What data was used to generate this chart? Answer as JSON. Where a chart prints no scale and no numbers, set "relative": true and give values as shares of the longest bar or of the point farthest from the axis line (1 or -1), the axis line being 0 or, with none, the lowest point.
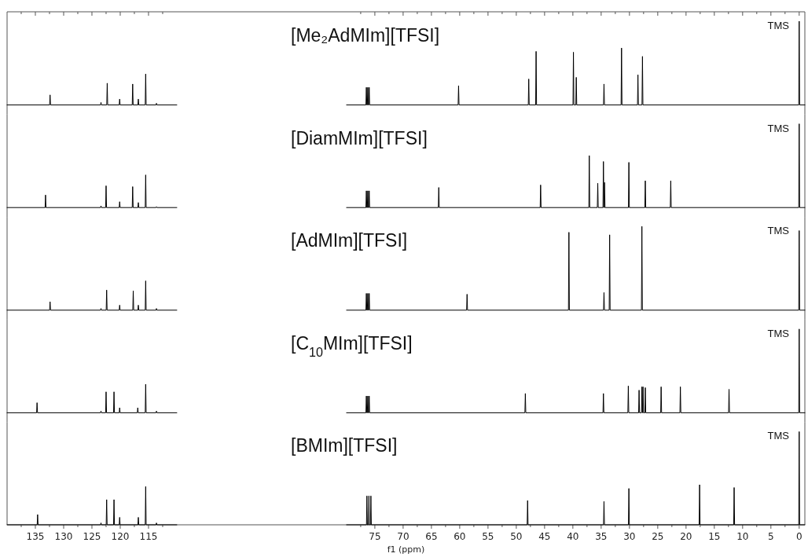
{
  "chart_data": [
    {
      "type": "line",
      "title": "[Me₂AdMIm][TFSI]",
      "relative": true,
      "tick_labels": false,
      "annotations": [
        "TMS"
      ],
      "xlim": [
        140,
        -1
      ],
      "xticks": [
        {
          "value": 137.5,
          "label": null
        },
        135,
        {
          "value": 132.5,
          "label": null
        },
        130,
        {
          "value": 127.5,
          "label": null
        },
        125,
        {
          "value": 122.5,
          "label": null
        },
        120,
        {
          "value": 117.5,
          "label": null
        },
        115,
        {
          "value": 112.5,
          "label": null
        },
        {
          "value": 77.5,
          "label": null
        },
        75,
        {
          "value": 72.5,
          "label": null
        },
        70,
        {
          "value": 67.5,
          "label": null
        },
        65,
        {
          "value": 62.5,
          "label": null
        },
        60,
        {
          "value": 57.5,
          "label": null
        },
        55,
        {
          "value": 52.5,
          "label": null
        },
        50,
        {
          "value": 47.5,
          "label": null
        },
        45,
        {
          "value": 42.5,
          "label": null
        },
        40,
        {
          "value": 37.5,
          "label": null
        },
        35,
        {
          "value": 32.5,
          "label": null
        },
        30,
        {
          "value": 27.5,
          "label": null
        },
        25,
        {
          "value": 22.5,
          "label": null
        },
        20,
        {
          "value": 17.5,
          "label": null
        },
        15,
        {
          "value": 12.5,
          "label": null
        },
        10,
        {
          "value": 7.5,
          "label": null
        },
        5,
        {
          "value": 2.5,
          "label": null
        },
        0
      ],
      "series": [
        {
          "color": "#000000",
          "x": [
            140,
            132.48,
            132.4,
            132.32,
            123.48,
            123.4,
            123.32,
            122.38,
            122.3,
            122.22,
            120.18,
            120.1,
            120.02,
            117.88,
            117.8,
            117.72,
            116.88,
            116.8,
            116.72,
            115.58,
            115.5,
            115.42,
            113.68,
            113.6,
            113.52,
            110,
            95,
            80,
            76.58,
            76.5,
            76.42,
            76.33,
            76.25,
            76.17,
            76.08,
            76,
            75.92,
            60.28,
            60.2,
            60.12,
            47.88,
            47.8,
            47.72,
            46.58,
            46.5,
            46.42,
            39.98,
            39.9,
            39.82,
            39.48,
            39.4,
            39.32,
            34.58,
            34.5,
            34.42,
            31.48,
            31.4,
            31.32,
            28.58,
            28.5,
            28.42,
            27.78,
            27.7,
            27.62,
            0.08,
            0,
            -0.08,
            -1
          ],
          "values": [
            0,
            0,
            0.12,
            0,
            0,
            0.03,
            0,
            0,
            0.26,
            0,
            0,
            0.07,
            0,
            0,
            0.25,
            0,
            0,
            0.07,
            0,
            0,
            0.37,
            0,
            0,
            0.02,
            0,
            0,
            null,
            0,
            0,
            0.21,
            0,
            0,
            0.21,
            0,
            0,
            0.21,
            0,
            0,
            0.23,
            0,
            0,
            0.31,
            0,
            0,
            0.64,
            0,
            0,
            0.63,
            0,
            0,
            0.33,
            0,
            0,
            0.25,
            0,
            0,
            0.68,
            0,
            0,
            0.36,
            0,
            0,
            0.58,
            0,
            0,
            1,
            0,
            0
          ]
        }
      ]
    },
    {
      "type": "line",
      "title": "[DiamMIm][TFSI]",
      "relative": true,
      "tick_labels": false,
      "annotations": [
        "TMS"
      ],
      "xlim": [
        140,
        -1
      ],
      "series": [
        {
          "color": "#000000",
          "x": [
            140,
            133.28,
            133.2,
            133.12,
            123.48,
            123.4,
            123.32,
            122.58,
            122.5,
            122.42,
            120.18,
            120.1,
            120.02,
            117.88,
            117.8,
            117.72,
            116.88,
            116.8,
            116.72,
            115.58,
            115.5,
            115.42,
            113.68,
            113.6,
            113.52,
            110,
            95,
            80,
            76.58,
            76.5,
            76.42,
            76.33,
            76.25,
            76.17,
            76.08,
            76,
            75.92,
            63.78,
            63.7,
            63.62,
            45.78,
            45.7,
            45.62,
            37.18,
            37.1,
            37.02,
            35.68,
            35.6,
            35.52,
            34.68,
            34.6,
            34.52,
            34.48,
            34.4,
            34.32,
            30.18,
            30.1,
            30.02,
            27.28,
            27.2,
            27.12,
            22.78,
            22.7,
            22.62,
            0.08,
            0,
            -0.08,
            -1
          ],
          "values": [
            0,
            0,
            0.15,
            0,
            0,
            0.02,
            0,
            0,
            0.26,
            0,
            0,
            0.07,
            0,
            0,
            0.25,
            0,
            0,
            0.06,
            0,
            0,
            0.39,
            0,
            0,
            0.01,
            0,
            0,
            null,
            0,
            0,
            0.2,
            0,
            0,
            0.2,
            0,
            0,
            0.2,
            0,
            0,
            0.24,
            0,
            0,
            0.27,
            0,
            0,
            0.62,
            0,
            0,
            0.29,
            0,
            0,
            0.55,
            0,
            0,
            0.3,
            0,
            0,
            0.54,
            0,
            0,
            0.32,
            0,
            0,
            0.32,
            0,
            0,
            1,
            0,
            0
          ]
        }
      ]
    },
    {
      "type": "line",
      "title": "[AdMIm][TFSI]",
      "relative": true,
      "tick_labels": false,
      "annotations": [
        "TMS"
      ],
      "xlim": [
        140,
        -1
      ],
      "series": [
        {
          "color": "#000000",
          "x": [
            140,
            132.48,
            132.4,
            132.32,
            123.48,
            123.4,
            123.32,
            122.48,
            122.4,
            122.32,
            120.18,
            120.1,
            120.02,
            117.78,
            117.7,
            117.62,
            116.88,
            116.8,
            116.72,
            115.58,
            115.5,
            115.42,
            113.68,
            113.6,
            113.52,
            110,
            95,
            80,
            76.58,
            76.5,
            76.42,
            76.33,
            76.25,
            76.17,
            76.08,
            76,
            75.92,
            58.78,
            58.7,
            58.62,
            40.78,
            40.7,
            40.62,
            34.58,
            34.5,
            34.42,
            33.58,
            33.5,
            33.42,
            27.88,
            27.8,
            27.72,
            0.08,
            0,
            -0.08,
            -1
          ],
          "values": [
            0,
            0,
            0.1,
            0,
            0,
            0.02,
            0,
            0,
            0.24,
            0,
            0,
            0.06,
            0,
            0,
            0.23,
            0,
            0,
            0.06,
            0,
            0,
            0.35,
            0,
            0,
            0.02,
            0,
            0,
            null,
            0,
            0,
            0.2,
            0,
            0,
            0.2,
            0,
            0,
            0.2,
            0,
            0,
            0.19,
            0,
            0,
            0.93,
            0,
            0,
            0.21,
            0,
            0,
            0.9,
            0,
            0,
            1,
            0,
            0,
            0.95,
            0,
            0
          ]
        }
      ]
    },
    {
      "type": "line",
      "title": "[C$_{10}$MIm][TFSI]",
      "relative": true,
      "tick_labels": false,
      "annotations": [
        "TMS"
      ],
      "xlim": [
        140,
        -1
      ],
      "series": [
        {
          "color": "#000000",
          "x": [
            140,
            134.78,
            134.7,
            134.62,
            123.48,
            123.4,
            123.32,
            122.58,
            122.5,
            122.42,
            121.18,
            121.1,
            121.02,
            120.18,
            120.1,
            120.02,
            116.98,
            116.9,
            116.82,
            115.58,
            115.5,
            115.42,
            113.68,
            113.6,
            113.52,
            110,
            95,
            80,
            76.58,
            76.5,
            76.42,
            76.33,
            76.25,
            76.17,
            76.08,
            76,
            75.92,
            48.48,
            48.4,
            48.32,
            34.68,
            34.6,
            34.52,
            30.28,
            30.2,
            30.12,
            28.38,
            28.3,
            28.22,
            27.88,
            27.8,
            27.72,
            27.68,
            27.6,
            27.52,
            27.28,
            27.2,
            27.12,
            24.48,
            24.4,
            24.32,
            21.08,
            21,
            20.92,
            12.48,
            12.4,
            12.32,
            0.08,
            0,
            -0.08,
            -1
          ],
          "values": [
            0,
            0,
            0.12,
            0,
            0,
            0.02,
            0,
            0,
            0.25,
            0,
            0,
            0.25,
            0,
            0,
            0.06,
            0,
            0,
            0.06,
            0,
            0,
            0.34,
            0,
            0,
            0.02,
            0,
            0,
            null,
            0,
            0,
            0.2,
            0,
            0,
            0.2,
            0,
            0,
            0.2,
            0,
            0,
            0.23,
            0,
            0,
            0.23,
            0,
            0,
            0.32,
            0,
            0,
            0.27,
            0,
            0,
            0.31,
            0,
            0,
            0.31,
            0,
            0,
            0.3,
            0,
            0,
            0.31,
            0,
            0,
            0.31,
            0,
            0,
            0.28,
            0,
            0,
            1,
            0,
            0
          ]
        }
      ]
    },
    {
      "type": "line",
      "title": "[BMIm][TFSI]",
      "relative": true,
      "tick_labels": "x",
      "xlabel": "f1 (ppm)",
      "annotations": [
        "TMS"
      ],
      "xlim": [
        140,
        -1
      ],
      "xticks": [
        {
          "value": 137.5,
          "label": null
        },
        135,
        {
          "value": 132.5,
          "label": null
        },
        130,
        {
          "value": 127.5,
          "label": null
        },
        125,
        {
          "value": 122.5,
          "label": null
        },
        120,
        {
          "value": 117.5,
          "label": null
        },
        115,
        {
          "value": 112.5,
          "label": null
        },
        {
          "value": 77.5,
          "label": null
        },
        75,
        {
          "value": 72.5,
          "label": null
        },
        70,
        {
          "value": 67.5,
          "label": null
        },
        65,
        {
          "value": 62.5,
          "label": null
        },
        60,
        {
          "value": 57.5,
          "label": null
        },
        55,
        {
          "value": 52.5,
          "label": null
        },
        50,
        {
          "value": 47.5,
          "label": null
        },
        45,
        {
          "value": 42.5,
          "label": null
        },
        40,
        {
          "value": 37.5,
          "label": null
        },
        35,
        {
          "value": 32.5,
          "label": null
        },
        30,
        {
          "value": 27.5,
          "label": null
        },
        25,
        {
          "value": 22.5,
          "label": null
        },
        20,
        {
          "value": 17.5,
          "label": null
        },
        15,
        {
          "value": 12.5,
          "label": null
        },
        10,
        {
          "value": 7.5,
          "label": null
        },
        5,
        {
          "value": 2.5,
          "label": null
        },
        0
      ],
      "series": [
        {
          "color": "#000000",
          "x": [
            140,
            134.68,
            134.6,
            134.52,
            123.48,
            123.4,
            123.32,
            122.48,
            122.4,
            122.32,
            121.18,
            121.1,
            121.02,
            120.18,
            120.1,
            120.02,
            116.88,
            116.8,
            116.72,
            115.58,
            115.5,
            115.42,
            113.68,
            113.6,
            113.52,
            110,
            95,
            80,
            76.48,
            76.4,
            76.32,
            76.13,
            76.05,
            75.97,
            75.78,
            75.7,
            75.62,
            48.08,
            48,
            47.92,
            34.58,
            34.5,
            34.42,
            30.18,
            30.1,
            30.02,
            17.68,
            17.6,
            17.52,
            11.58,
            11.5,
            11.42,
            0.08,
            0,
            -0.08,
            -1
          ],
          "values": [
            0,
            0,
            0.11,
            0,
            0,
            0.02,
            0,
            0,
            0.27,
            0,
            0,
            0.27,
            0,
            0,
            0.08,
            0,
            0,
            0.08,
            0,
            0,
            0.41,
            0,
            0,
            0.02,
            0,
            0,
            null,
            0,
            0,
            0.31,
            0,
            0,
            0.31,
            0,
            0,
            0.31,
            0,
            0,
            0.26,
            0,
            0,
            0.25,
            0,
            0,
            0.39,
            0,
            0,
            0.43,
            0,
            0,
            0.4,
            0,
            0,
            1,
            0,
            0
          ]
        }
      ]
    }
  ]
}
